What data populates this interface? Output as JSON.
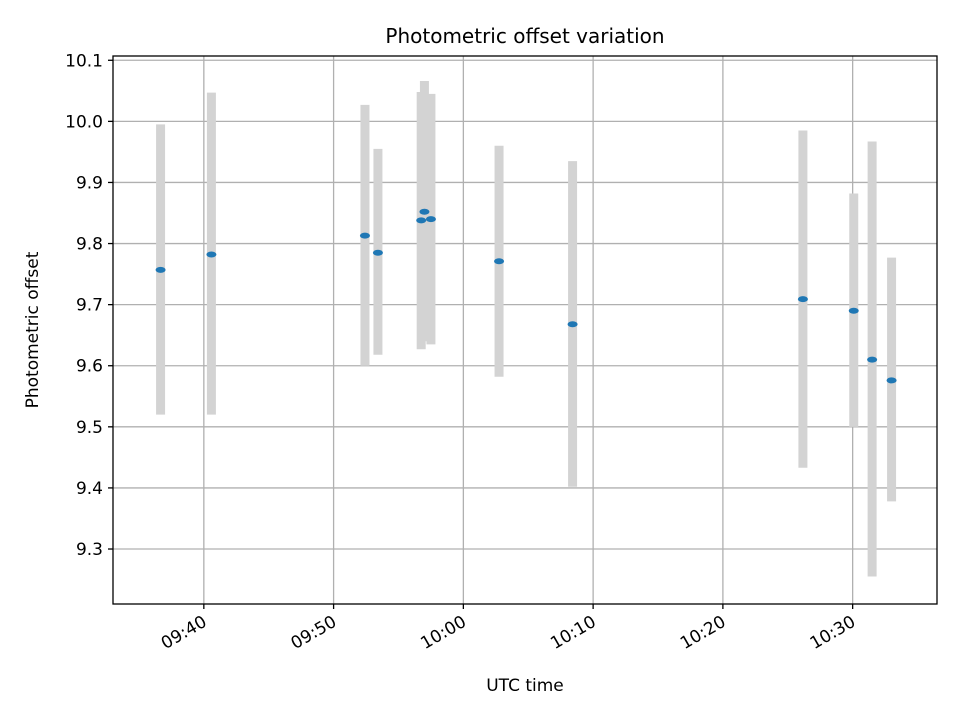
{
  "chart_data": {
    "type": "scatter",
    "title": "Photometric offset variation",
    "xlabel": "UTC time",
    "ylabel": "Photometric offset",
    "x_ticks": [
      "09:40",
      "09:50",
      "10:00",
      "10:10",
      "10:20",
      "10:30"
    ],
    "y_ticks": [
      "9.3",
      "9.4",
      "9.5",
      "9.6",
      "9.7",
      "9.8",
      "9.9",
      "10.0",
      "10.1"
    ],
    "xlim": [
      "09:33:00",
      "10:36:30"
    ],
    "ylim": [
      9.21,
      10.107
    ],
    "grid": true,
    "errorbar_color": "#d3d3d3",
    "marker_color": "#1f77b4",
    "points": [
      {
        "time": "09:36:40",
        "y": 9.757,
        "ylow": 9.52,
        "yhigh": 9.995
      },
      {
        "time": "09:40:35",
        "y": 9.782,
        "ylow": 9.52,
        "yhigh": 10.047
      },
      {
        "time": "09:52:25",
        "y": 9.813,
        "ylow": 9.6,
        "yhigh": 10.027
      },
      {
        "time": "09:53:25",
        "y": 9.785,
        "ylow": 9.618,
        "yhigh": 9.955
      },
      {
        "time": "09:56:45",
        "y": 9.838,
        "ylow": 9.627,
        "yhigh": 10.048
      },
      {
        "time": "09:57:00",
        "y": 9.852,
        "ylow": 9.64,
        "yhigh": 10.066
      },
      {
        "time": "09:57:30",
        "y": 9.84,
        "ylow": 9.635,
        "yhigh": 10.045
      },
      {
        "time": "10:02:45",
        "y": 9.771,
        "ylow": 9.582,
        "yhigh": 9.96
      },
      {
        "time": "10:08:25",
        "y": 9.668,
        "ylow": 9.402,
        "yhigh": 9.935
      },
      {
        "time": "10:26:10",
        "y": 9.709,
        "ylow": 9.433,
        "yhigh": 9.985
      },
      {
        "time": "10:30:05",
        "y": 9.69,
        "ylow": 9.5,
        "yhigh": 9.882
      },
      {
        "time": "10:31:30",
        "y": 9.61,
        "ylow": 9.255,
        "yhigh": 9.967
      },
      {
        "time": "10:33:00",
        "y": 9.576,
        "ylow": 9.378,
        "yhigh": 9.777
      }
    ]
  }
}
